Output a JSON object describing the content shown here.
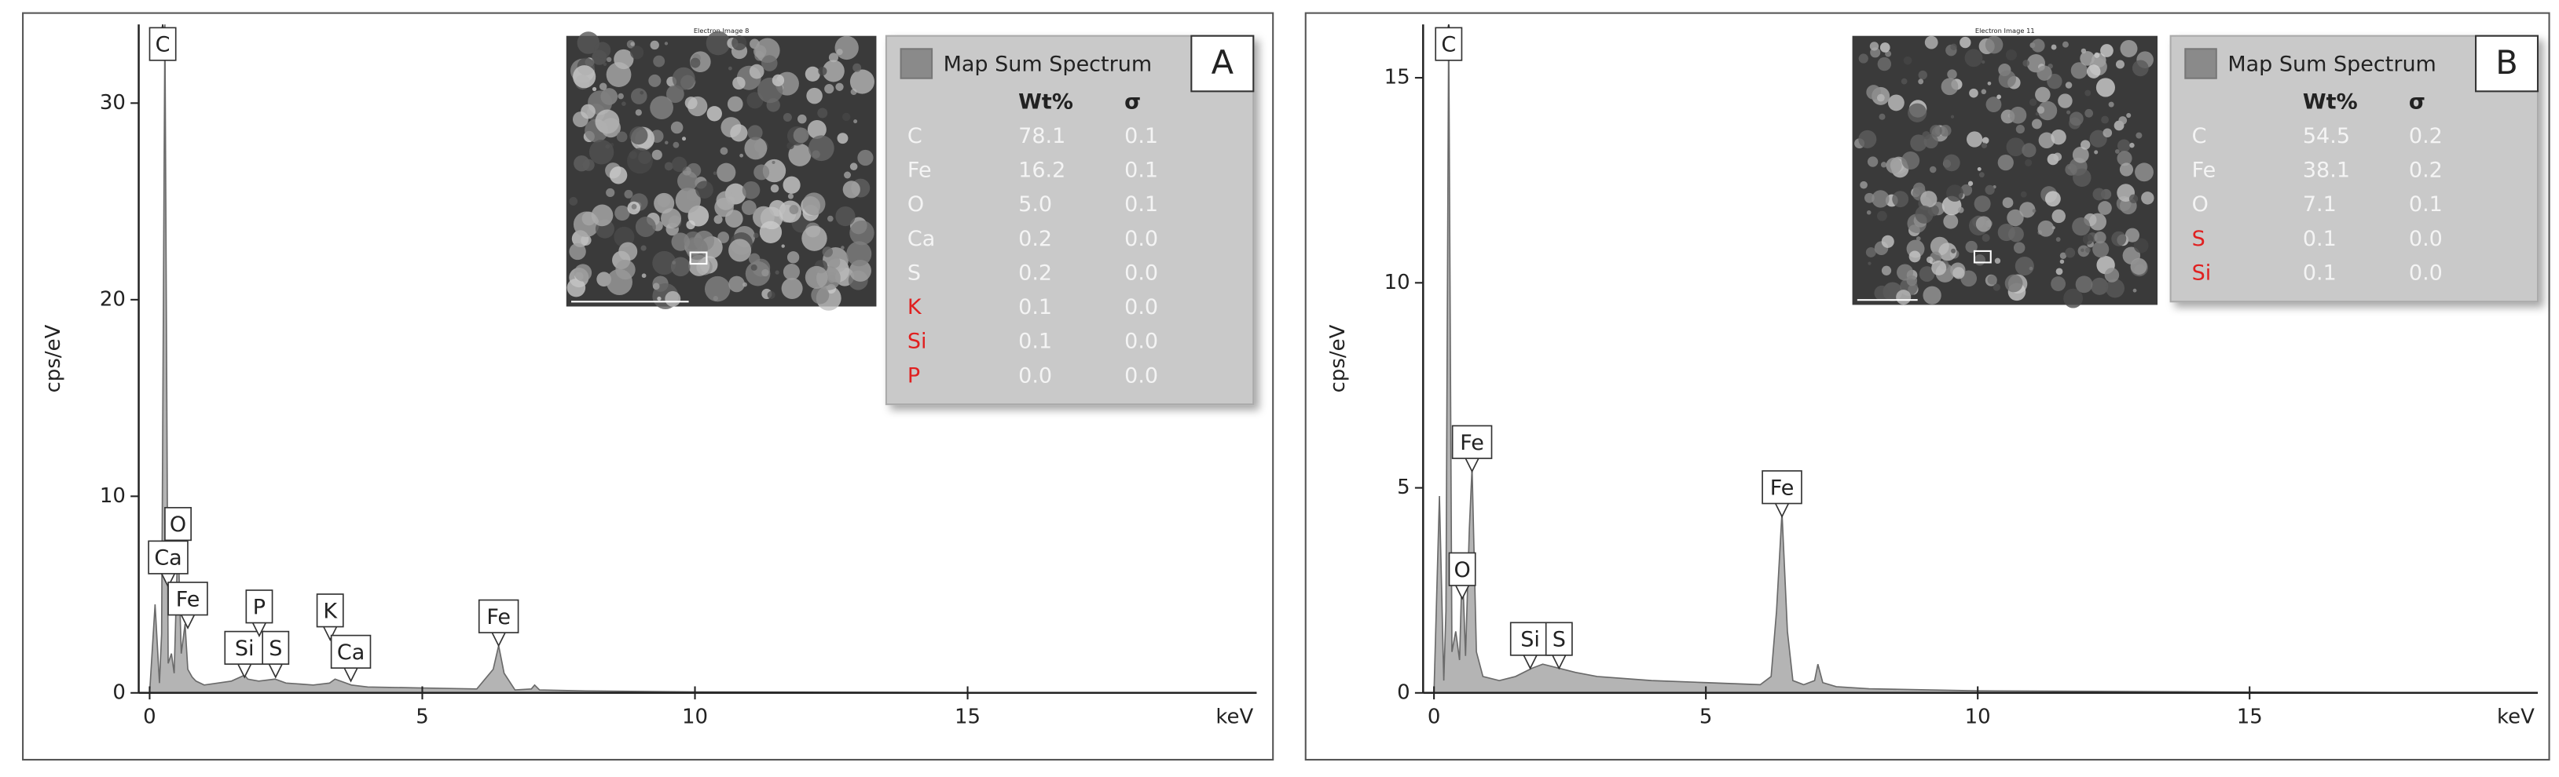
{
  "chart_data": [
    {
      "type": "area",
      "panel": "A",
      "x_label": "keV",
      "y_label": "cps/eV",
      "x": [
        0,
        0.1,
        0.18,
        0.22,
        0.28,
        0.34,
        0.4,
        0.45,
        0.52,
        0.58,
        0.65,
        0.7,
        0.78,
        0.85,
        1.0,
        1.5,
        1.74,
        1.8,
        2.0,
        2.3,
        2.5,
        3.0,
        3.3,
        3.4,
        3.7,
        4.0,
        5.0,
        6.0,
        6.3,
        6.4,
        6.5,
        6.7,
        7.0,
        7.06,
        7.15,
        8,
        10,
        15,
        20.3
      ],
      "values": [
        0,
        4.5,
        0.5,
        3,
        34,
        1.5,
        2,
        1,
        8,
        2,
        3.5,
        1.2,
        0.8,
        0.6,
        0.4,
        0.6,
        0.9,
        0.7,
        0.6,
        0.7,
        0.5,
        0.4,
        0.5,
        0.7,
        0.4,
        0.3,
        0.25,
        0.2,
        1.2,
        2.4,
        1,
        0.15,
        0.2,
        0.4,
        0.15,
        0.1,
        0.05,
        0.02,
        0
      ],
      "color": "#b4b4b4",
      "xlim": [
        -0.2,
        20.3
      ],
      "ylim": [
        0,
        34
      ],
      "xticks": [
        0,
        5,
        10,
        15
      ],
      "yticks": [
        0,
        10,
        20,
        30
      ],
      "peaks": [
        {
          "label": "C",
          "x": 0.24,
          "y": 34
        },
        {
          "label": "O",
          "x": 0.52,
          "y": 7.1
        },
        {
          "label": "Ca",
          "x": 0.34,
          "y": 5.4
        },
        {
          "label": "Fe",
          "x": 0.7,
          "y": 3.3
        },
        {
          "label": "Si",
          "x": 1.74,
          "y": 0.8
        },
        {
          "label": "P",
          "x": 2.01,
          "y": 2.9
        },
        {
          "label": "S",
          "x": 2.31,
          "y": 0.8
        },
        {
          "label": "K",
          "x": 3.31,
          "y": 2.7
        },
        {
          "label": "Ca",
          "x": 3.69,
          "y": 0.6
        },
        {
          "label": "Fe",
          "x": 6.4,
          "y": 2.4
        }
      ],
      "image_title": "Electron Image 8",
      "legend_title": "Map Sum Spectrum",
      "table": {
        "headers": [
          "Wt%",
          "σ"
        ],
        "rows": [
          {
            "element": "C",
            "wt": "78.1",
            "sigma": "0.1",
            "color": "#f4f4f4"
          },
          {
            "element": "Fe",
            "wt": "16.2",
            "sigma": "0.1",
            "color": "#f4f4f4"
          },
          {
            "element": "O",
            "wt": "5.0",
            "sigma": "0.1",
            "color": "#f4f4f4"
          },
          {
            "element": "Ca",
            "wt": "0.2",
            "sigma": "0.0",
            "color": "#f4f4f4"
          },
          {
            "element": "S",
            "wt": "0.2",
            "sigma": "0.0",
            "color": "#f4f4f4"
          },
          {
            "element": "K",
            "wt": "0.1",
            "sigma": "0.0",
            "color": "#e02020"
          },
          {
            "element": "Si",
            "wt": "0.1",
            "sigma": "0.0",
            "color": "#e02020"
          },
          {
            "element": "P",
            "wt": "0.0",
            "sigma": "0.0",
            "color": "#e02020"
          }
        ]
      }
    },
    {
      "type": "area",
      "panel": "B",
      "x_label": "keV",
      "y_label": "cps/eV",
      "x": [
        0,
        0.1,
        0.18,
        0.22,
        0.27,
        0.33,
        0.4,
        0.47,
        0.52,
        0.58,
        0.65,
        0.7,
        0.78,
        0.9,
        1.2,
        1.5,
        1.8,
        2.0,
        2.3,
        2.6,
        3,
        4,
        5,
        6,
        6.2,
        6.3,
        6.4,
        6.5,
        6.6,
        6.8,
        7.0,
        7.06,
        7.15,
        7.4,
        8,
        10,
        15,
        20.3
      ],
      "values": [
        0,
        4.8,
        0.3,
        2,
        16.3,
        1,
        1.5,
        0.8,
        3.2,
        0.9,
        4,
        5.5,
        1,
        0.4,
        0.3,
        0.4,
        0.6,
        0.7,
        0.6,
        0.5,
        0.4,
        0.3,
        0.25,
        0.2,
        0.4,
        2,
        4.4,
        1.5,
        0.3,
        0.2,
        0.3,
        0.7,
        0.25,
        0.15,
        0.1,
        0.05,
        0.02,
        0
      ],
      "color": "#b4b4b4",
      "xlim": [
        -0.2,
        20.3
      ],
      "ylim": [
        0,
        16.3
      ],
      "xticks": [
        0,
        5,
        10,
        15
      ],
      "yticks": [
        0,
        5,
        10,
        15
      ],
      "peaks": [
        {
          "label": "C",
          "x": 0.27,
          "y": 16.3
        },
        {
          "label": "Fe",
          "x": 0.7,
          "y": 5.4
        },
        {
          "label": "O",
          "x": 0.52,
          "y": 2.3
        },
        {
          "label": "Si",
          "x": 1.77,
          "y": 0.6
        },
        {
          "label": "S",
          "x": 2.3,
          "y": 0.6
        },
        {
          "label": "Fe",
          "x": 6.4,
          "y": 4.3
        }
      ],
      "image_title": "Electron Image 11",
      "legend_title": "Map Sum Spectrum",
      "table": {
        "headers": [
          "Wt%",
          "σ"
        ],
        "rows": [
          {
            "element": "C",
            "wt": "54.5",
            "sigma": "0.2",
            "color": "#f4f4f4"
          },
          {
            "element": "Fe",
            "wt": "38.1",
            "sigma": "0.2",
            "color": "#f4f4f4"
          },
          {
            "element": "O",
            "wt": "7.1",
            "sigma": "0.1",
            "color": "#f4f4f4"
          },
          {
            "element": "S",
            "wt": "0.1",
            "sigma": "0.0",
            "color": "#e02020"
          },
          {
            "element": "Si",
            "wt": "0.1",
            "sigma": "0.0",
            "color": "#e02020"
          }
        ]
      }
    }
  ]
}
